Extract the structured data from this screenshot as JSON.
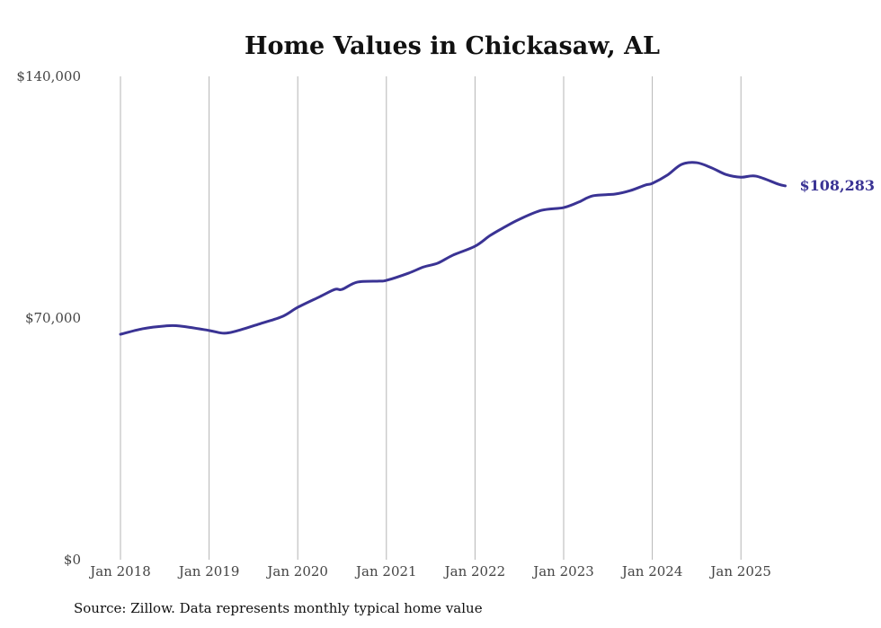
{
  "chart_data": {
    "type": "line",
    "title": "Home Values in Chickasaw, AL",
    "xlabel": "",
    "ylabel": "",
    "ylim": [
      0,
      140000
    ],
    "xlim": [
      2018.0,
      2025.5
    ],
    "y_ticks": [
      {
        "value": 0,
        "label": "$0"
      },
      {
        "value": 70000,
        "label": "$70,000"
      },
      {
        "value": 140000,
        "label": "$140,000"
      }
    ],
    "x_ticks": [
      {
        "value": 2018,
        "label": "Jan 2018"
      },
      {
        "value": 2019,
        "label": "Jan 2019"
      },
      {
        "value": 2020,
        "label": "Jan 2020"
      },
      {
        "value": 2021,
        "label": "Jan 2021"
      },
      {
        "value": 2022,
        "label": "Jan 2022"
      },
      {
        "value": 2023,
        "label": "Jan 2023"
      },
      {
        "value": 2024,
        "label": "Jan 2024"
      },
      {
        "value": 2025,
        "label": "Jan 2025"
      }
    ],
    "grid": "vertical",
    "series": [
      {
        "name": "Typical home value",
        "color": "#3a3394",
        "end_label": "$108,283",
        "x": [
          2018.0,
          2018.25,
          2018.5,
          2018.67,
          2019.0,
          2019.17,
          2019.33,
          2019.58,
          2019.83,
          2020.0,
          2020.25,
          2020.42,
          2020.5,
          2020.67,
          2020.92,
          2021.0,
          2021.25,
          2021.42,
          2021.58,
          2021.75,
          2022.0,
          2022.17,
          2022.33,
          2022.5,
          2022.75,
          2023.0,
          2023.17,
          2023.33,
          2023.58,
          2023.75,
          2023.92,
          2024.0,
          2024.17,
          2024.33,
          2024.5,
          2024.67,
          2024.83,
          2025.0,
          2025.17,
          2025.42,
          2025.5
        ],
        "values": [
          65300,
          66900,
          67700,
          67700,
          66400,
          65600,
          66400,
          68400,
          70500,
          73100,
          76200,
          78300,
          78300,
          80400,
          80700,
          80900,
          83000,
          84800,
          85900,
          88200,
          90800,
          93900,
          96300,
          98600,
          101200,
          102000,
          103600,
          105400,
          105900,
          106900,
          108500,
          109000,
          111400,
          114500,
          115000,
          113500,
          111600,
          110800,
          111100,
          108800,
          108283
        ]
      }
    ]
  },
  "source": "Source: Zillow. Data represents monthly typical home value"
}
